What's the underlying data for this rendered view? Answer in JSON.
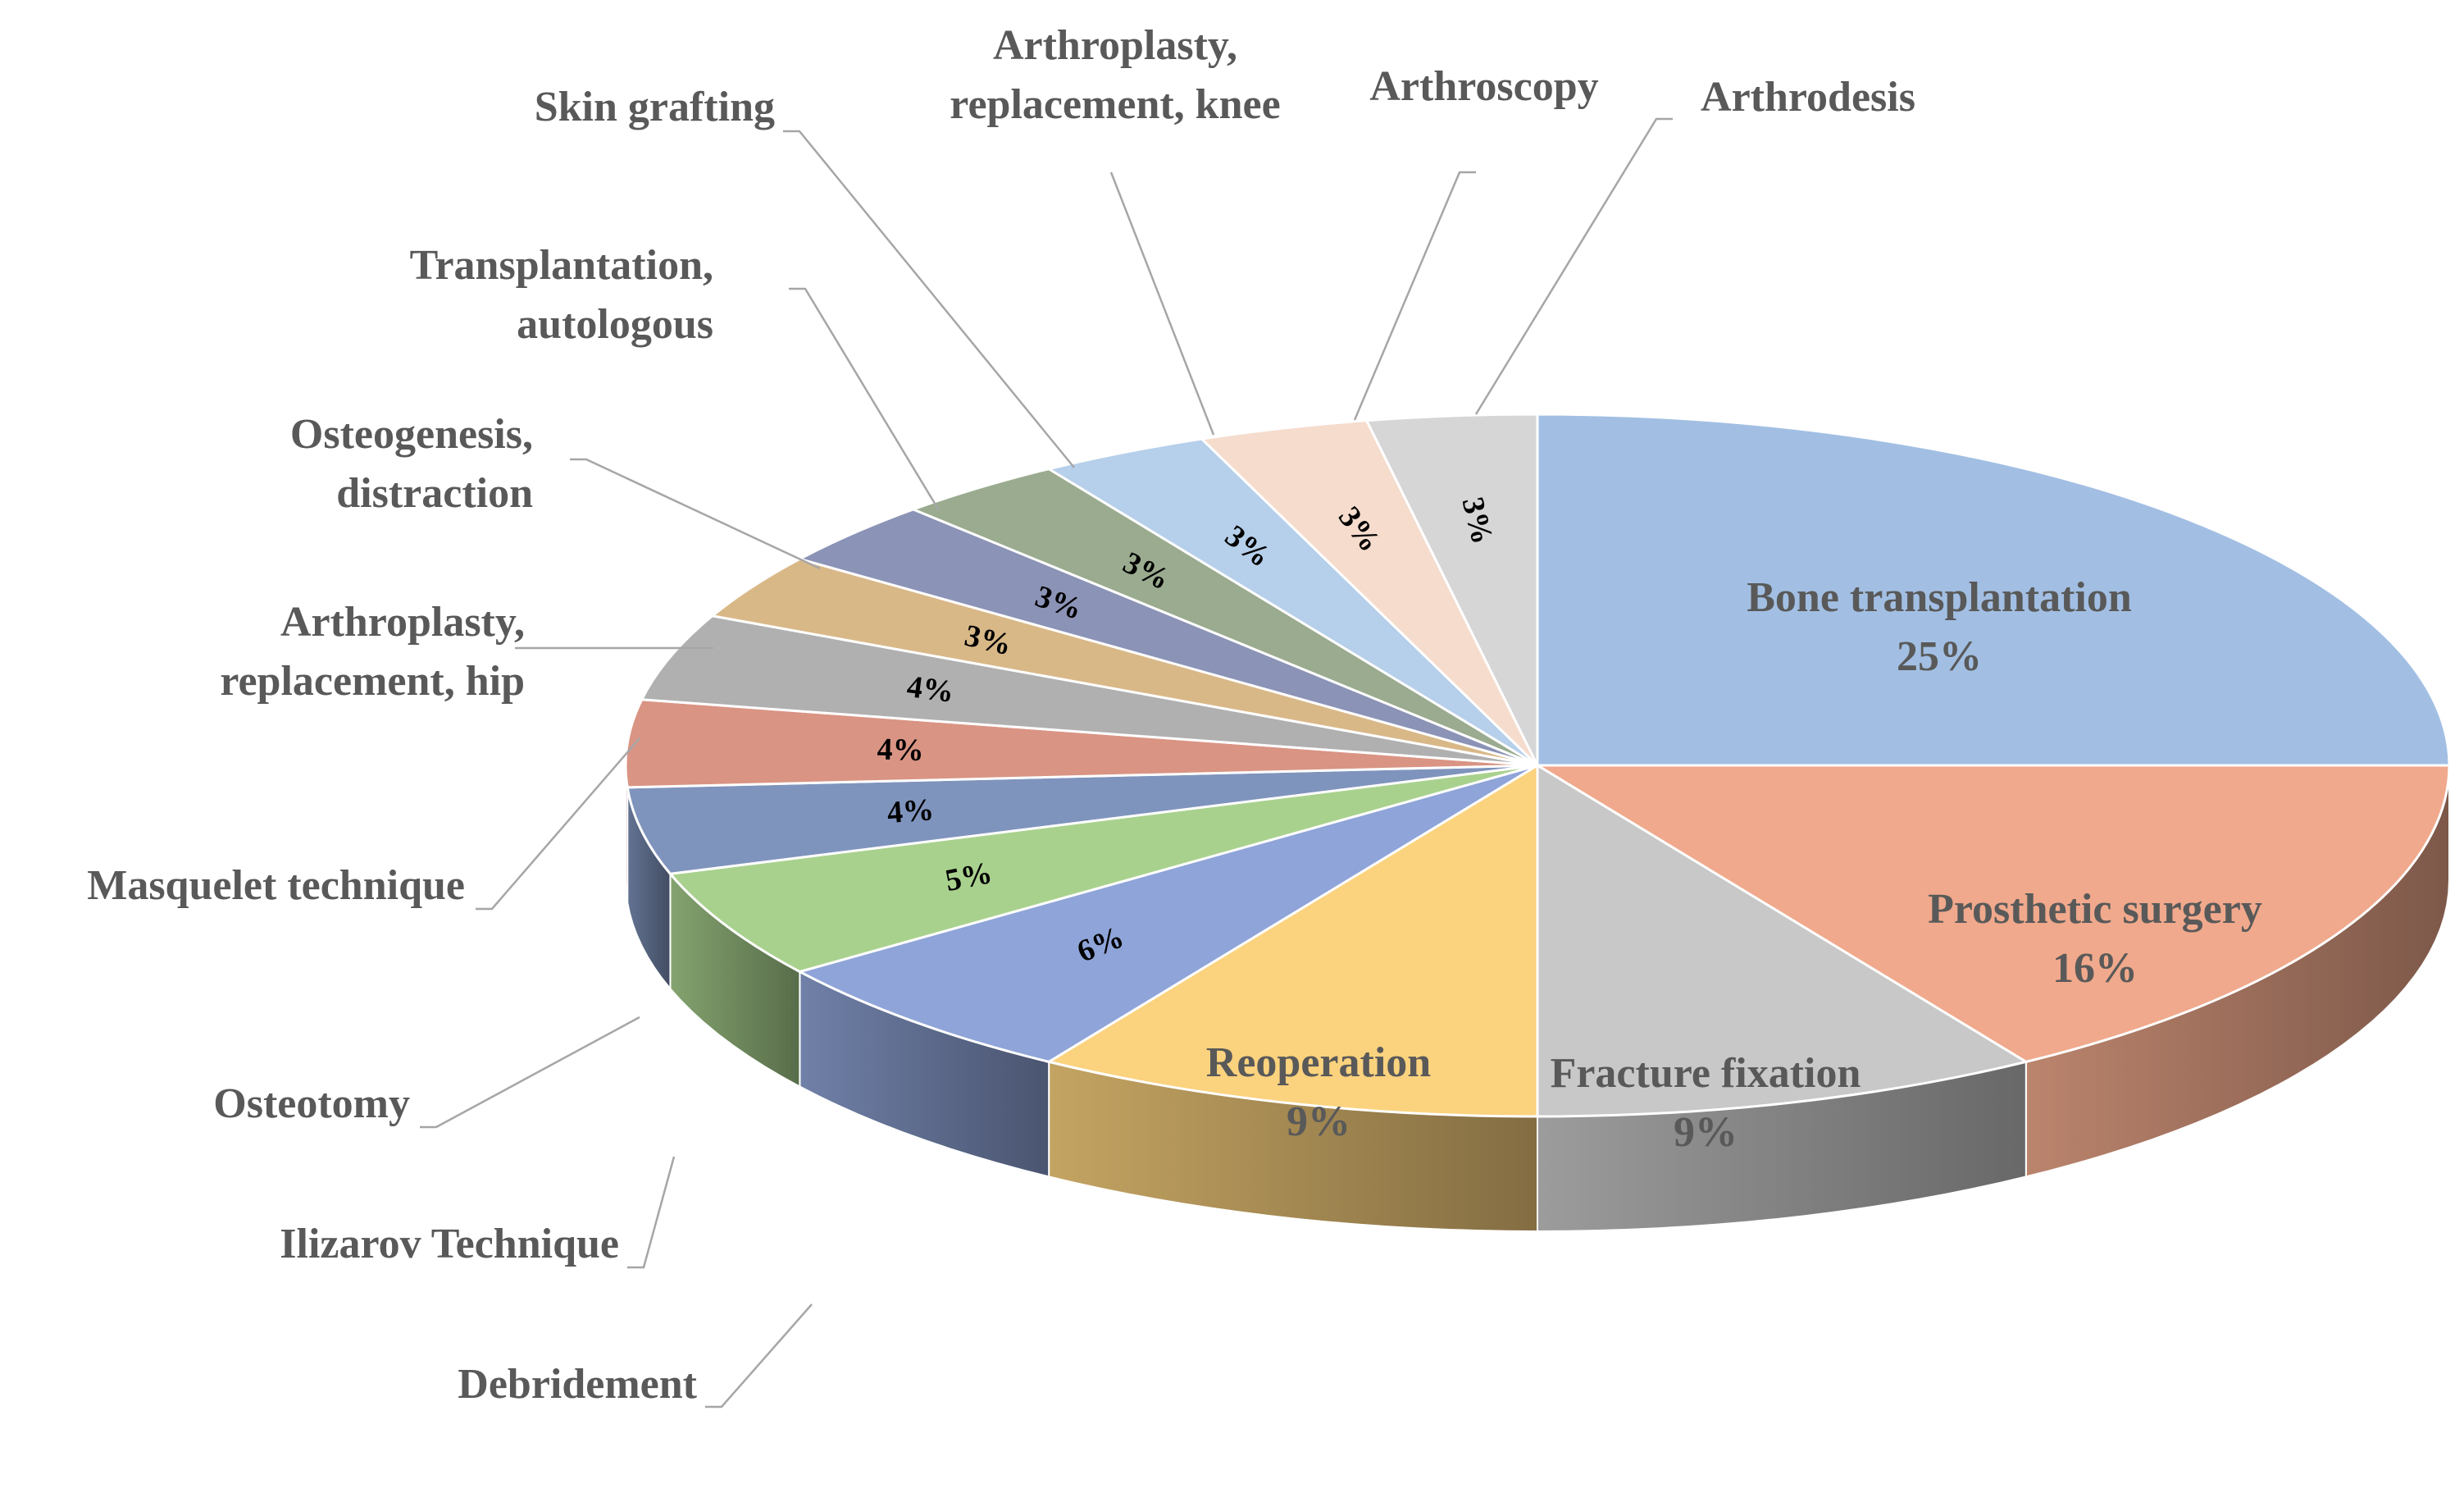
{
  "chart_data": {
    "type": "pie",
    "title": "",
    "style": "3d",
    "slices": [
      {
        "label": "Bone transplantation",
        "percent_label": "25%",
        "value": 25,
        "color": "#a2bfe3",
        "label_placement": "inside"
      },
      {
        "label": "Prosthetic surgery",
        "percent_label": "16%",
        "value": 16,
        "color": "#f0a98c",
        "label_placement": "inside"
      },
      {
        "label": "Fracture fixation",
        "percent_label": "9%",
        "value": 9,
        "color": "#c8c8c8",
        "label_placement": "inside"
      },
      {
        "label": "Reoperation",
        "percent_label": "9%",
        "value": 9,
        "color": "#fbd27e",
        "label_placement": "inside"
      },
      {
        "label": "Debridement",
        "percent_label": "6%",
        "value": 6,
        "color": "#8fa4d8",
        "label_placement": "callout"
      },
      {
        "label": "Ilizarov Technique",
        "percent_label": "5%",
        "value": 5,
        "color": "#a9d18e",
        "label_placement": "callout"
      },
      {
        "label": "Osteotomy",
        "percent_label": "4%",
        "value": 4,
        "color": "#7f94bd",
        "label_placement": "callout"
      },
      {
        "label": "Masquelet technique",
        "percent_label": "4%",
        "value": 4,
        "color": "#d99484",
        "label_placement": "callout"
      },
      {
        "label": "Arthroplasty,\nreplacement, hip",
        "percent_label": "4%",
        "value": 4,
        "color": "#b0b0b0",
        "label_placement": "callout"
      },
      {
        "label": "Osteogenesis,\ndistraction",
        "percent_label": "3%",
        "value": 3,
        "color": "#d9b888",
        "label_placement": "callout"
      },
      {
        "label": "Transplantation,\nautologous",
        "percent_label": "3%",
        "value": 3,
        "color": "#8b93b6",
        "label_placement": "callout"
      },
      {
        "label": "Skin grafting",
        "percent_label": "3%",
        "value": 3,
        "color": "#9aab8f",
        "label_placement": "callout"
      },
      {
        "label": "Arthroplasty,\nreplacement, knee",
        "percent_label": "3%",
        "value": 3,
        "color": "#b6cfea",
        "label_placement": "callout"
      },
      {
        "label": "Arthroscopy",
        "percent_label": "3%",
        "value": 3,
        "color": "#f5dccd",
        "label_placement": "callout"
      },
      {
        "label": "Arthrodesis",
        "percent_label": "3%",
        "value": 3,
        "color": "#d6d6d6",
        "label_placement": "callout"
      }
    ],
    "legend": "none"
  }
}
